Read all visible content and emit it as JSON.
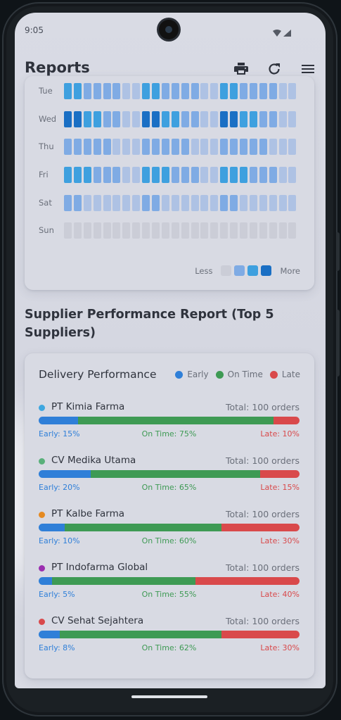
{
  "status": {
    "time": "9:05"
  },
  "appbar": {
    "title": "Reports",
    "icons": [
      "print-icon",
      "refresh-icon",
      "menu-icon"
    ]
  },
  "heatmap": {
    "days": [
      "Tue",
      "Wed",
      "Thu",
      "Fri",
      "Sat",
      "Sun"
    ],
    "levels": [
      [
        3,
        3,
        2,
        2,
        2,
        2,
        1,
        1,
        3,
        3,
        2,
        2,
        2,
        2,
        1,
        1,
        3,
        3,
        2,
        2,
        2,
        2,
        1,
        1
      ],
      [
        4,
        4,
        3,
        3,
        2,
        2,
        1,
        1,
        4,
        4,
        3,
        3,
        2,
        2,
        1,
        1,
        4,
        4,
        3,
        3,
        2,
        2,
        1,
        1
      ],
      [
        2,
        2,
        2,
        2,
        2,
        1,
        1,
        1,
        2,
        2,
        2,
        2,
        2,
        1,
        1,
        1,
        2,
        2,
        2,
        2,
        2,
        1,
        1,
        1
      ],
      [
        3,
        3,
        3,
        2,
        2,
        2,
        1,
        1,
        3,
        3,
        3,
        2,
        2,
        2,
        1,
        1,
        3,
        3,
        3,
        2,
        2,
        2,
        1,
        1
      ],
      [
        2,
        2,
        1,
        1,
        1,
        1,
        1,
        1,
        2,
        2,
        1,
        1,
        1,
        1,
        1,
        1,
        2,
        2,
        1,
        1,
        1,
        1,
        1,
        1
      ],
      [
        0,
        0,
        0,
        0,
        0,
        0,
        0,
        0,
        0,
        0,
        0,
        0,
        0,
        0,
        0,
        0,
        0,
        0,
        0,
        0,
        0,
        0,
        0,
        0
      ]
    ],
    "colors": [
      "#cbcdd7",
      "#aec2e4",
      "#7fabe4",
      "#3ea0df",
      "#1a6fc4"
    ],
    "legend_less": "Less",
    "legend_more": "More"
  },
  "section": {
    "title": "Supplier Performance Report (Top 5 Suppliers)"
  },
  "performance": {
    "title": "Delivery Performance",
    "legend": [
      {
        "label": "Early",
        "color": "#2f7fd8"
      },
      {
        "label": "On Time",
        "color": "#3e9a54"
      },
      {
        "label": "Late",
        "color": "#d9494b"
      }
    ],
    "suppliers": [
      {
        "name": "PT Kimia Farma",
        "dot": "#3ea7e0",
        "total": "Total: 100 orders",
        "early": 15,
        "ontime": 75,
        "late": 10,
        "early_label": "Early: 15%",
        "ontime_label": "On Time: 75%",
        "late_label": "Late: 10%"
      },
      {
        "name": "CV Medika Utama",
        "dot": "#59b07a",
        "total": "Total: 100 orders",
        "early": 20,
        "ontime": 65,
        "late": 15,
        "early_label": "Early: 20%",
        "ontime_label": "On Time: 65%",
        "late_label": "Late: 15%"
      },
      {
        "name": "PT Kalbe Farma",
        "dot": "#e58a22",
        "total": "Total: 100 orders",
        "early": 10,
        "ontime": 60,
        "late": 30,
        "early_label": "Early: 10%",
        "ontime_label": "On Time: 60%",
        "late_label": "Late: 30%"
      },
      {
        "name": "PT Indofarma Global",
        "dot": "#9b2fb0",
        "total": "Total: 100 orders",
        "early": 5,
        "ontime": 55,
        "late": 40,
        "early_label": "Early: 5%",
        "ontime_label": "On Time: 55%",
        "late_label": "Late: 40%"
      },
      {
        "name": "CV Sehat Sejahtera",
        "dot": "#d9494b",
        "total": "Total: 100 orders",
        "early": 8,
        "ontime": 62,
        "late": 30,
        "early_label": "Early: 8%",
        "ontime_label": "On Time: 62%",
        "late_label": "Late: 30%"
      }
    ]
  }
}
